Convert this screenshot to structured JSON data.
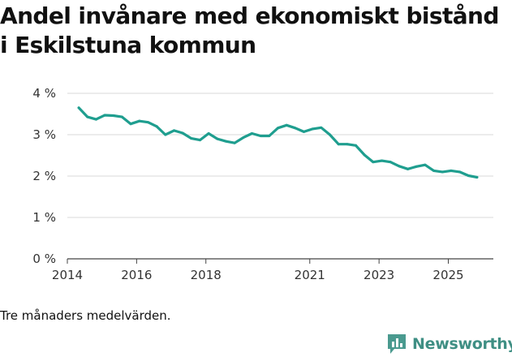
{
  "chart_data": {
    "type": "line",
    "title": "Andel invånare med ekonomiskt bistånd i Eskilstuna kommun",
    "xlabel": "",
    "ylabel": "",
    "ylim": [
      0,
      4
    ],
    "xlim": [
      2014.0,
      2026.3
    ],
    "y_ticks": [
      {
        "value": 0,
        "label": "0 %"
      },
      {
        "value": 1,
        "label": "1 %"
      },
      {
        "value": 2,
        "label": "2 %"
      },
      {
        "value": 3,
        "label": "3 %"
      },
      {
        "value": 4,
        "label": "4 %"
      }
    ],
    "x_ticks": [
      {
        "value": 2014,
        "label": "2014"
      },
      {
        "value": 2016,
        "label": "2016"
      },
      {
        "value": 2018,
        "label": "2018"
      },
      {
        "value": 2021,
        "label": "2021"
      },
      {
        "value": 2023,
        "label": "2023"
      },
      {
        "value": 2025,
        "label": "2025"
      }
    ],
    "grid": true,
    "line_color": "#1f9e8f",
    "series": [
      {
        "x": [
          2014.33,
          2014.58,
          2014.83,
          2015.08,
          2015.33,
          2015.58,
          2015.83,
          2016.08,
          2016.33,
          2016.58,
          2016.83,
          2017.08,
          2017.33,
          2017.58,
          2017.83,
          2018.08,
          2018.33,
          2018.58,
          2018.83,
          2019.08,
          2019.33,
          2019.58,
          2019.83,
          2020.08,
          2020.33,
          2020.58,
          2020.83,
          2021.08,
          2021.33,
          2021.58,
          2021.83,
          2022.08,
          2022.33,
          2022.58,
          2022.83,
          2023.08,
          2023.33,
          2023.58,
          2023.83,
          2024.08,
          2024.33,
          2024.58,
          2024.83,
          2025.08,
          2025.33,
          2025.58,
          2025.83
        ],
        "values": [
          3.65,
          3.43,
          3.37,
          3.47,
          3.46,
          3.43,
          3.26,
          3.33,
          3.3,
          3.2,
          3.0,
          3.1,
          3.04,
          2.91,
          2.87,
          3.03,
          2.9,
          2.84,
          2.8,
          2.93,
          3.03,
          2.97,
          2.97,
          3.16,
          3.23,
          3.16,
          3.07,
          3.14,
          3.17,
          3.0,
          2.77,
          2.77,
          2.74,
          2.51,
          2.34,
          2.37,
          2.34,
          2.24,
          2.17,
          2.23,
          2.27,
          2.13,
          2.1,
          2.13,
          2.1,
          2.01,
          1.97
        ]
      }
    ]
  },
  "note": "Tre månaders medelvärden.",
  "brand": {
    "name": "Newsworthy",
    "color": "#3f8f84",
    "icon": "bar-chart-logo-icon"
  }
}
